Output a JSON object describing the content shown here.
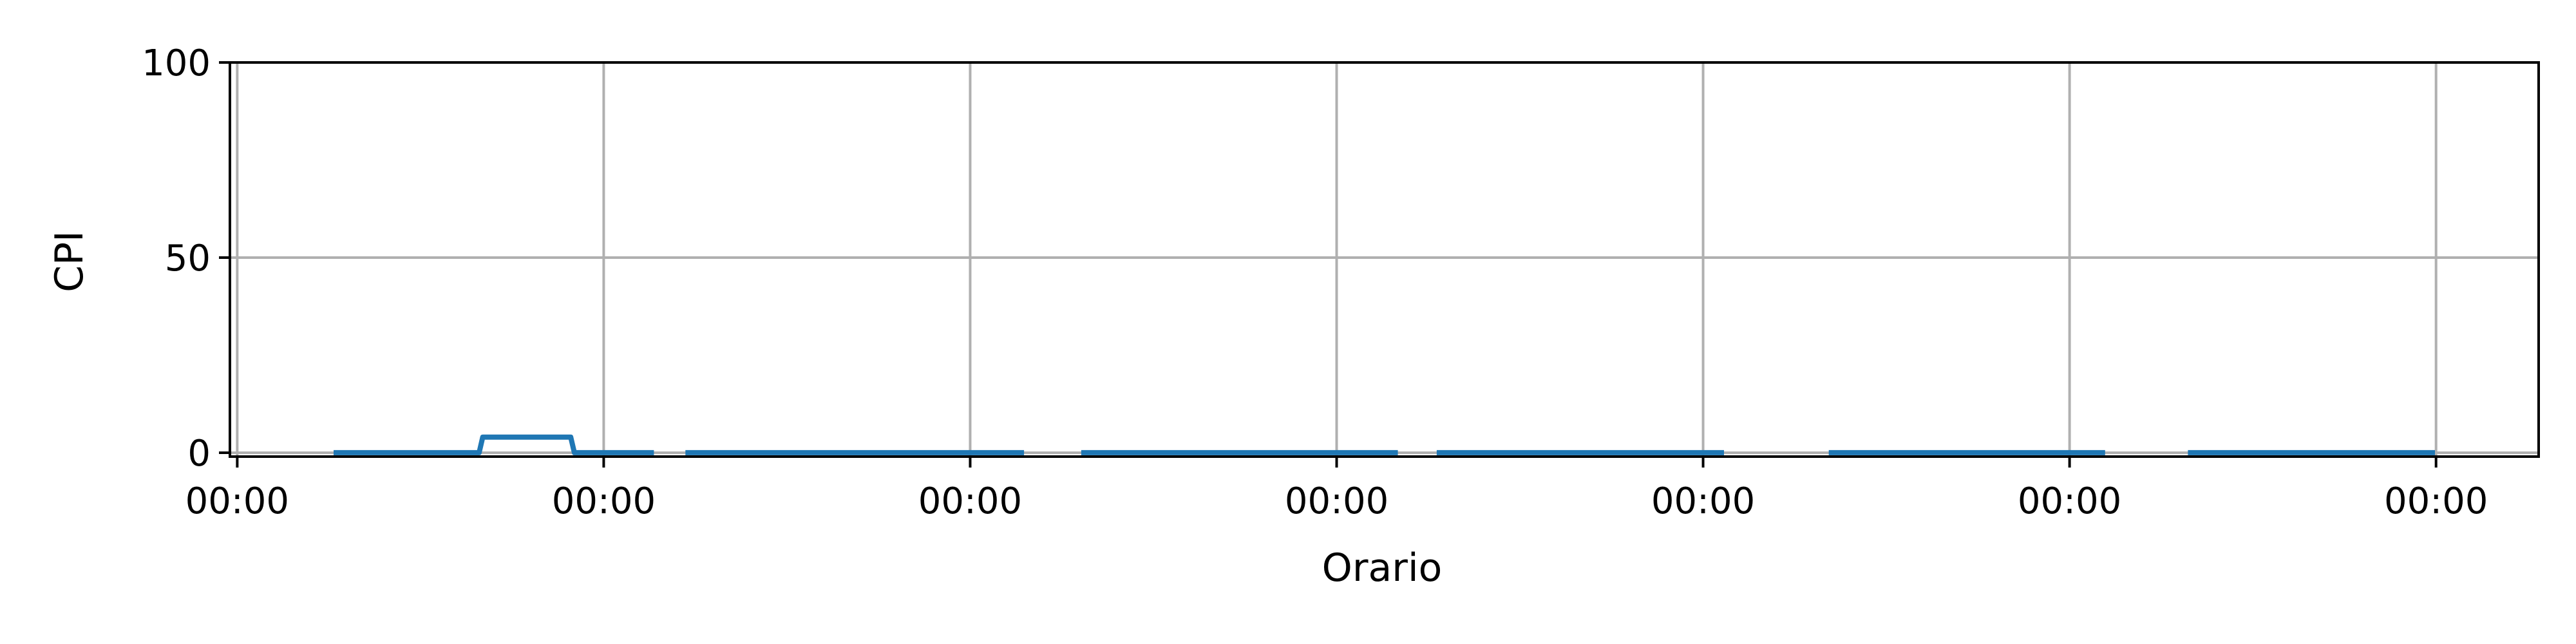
{
  "chart_data": {
    "type": "line",
    "xlabel": "Orario",
    "ylabel": "CPI",
    "xlim": [
      -0.02,
      6.28
    ],
    "ylim": [
      -1,
      100
    ],
    "grid": true,
    "legend": "none",
    "x_tick_positions": [
      0,
      1,
      2,
      3,
      4,
      5,
      6
    ],
    "x_tick_labels": [
      "00:00",
      "00:00",
      "00:00",
      "00:00",
      "00:00",
      "00:00",
      "00:00"
    ],
    "y_ticks": [
      0,
      50,
      100
    ],
    "y_tick_labels": [
      "0",
      "50",
      "100"
    ],
    "series": [
      {
        "color": "#1f77b4",
        "segments": [
          [
            [
              0.27,
              0
            ],
            [
              0.66,
              0
            ],
            [
              0.67,
              4
            ],
            [
              0.91,
              4
            ],
            [
              0.92,
              0
            ],
            [
              1.13,
              0
            ]
          ],
          [
            [
              1.23,
              0
            ],
            [
              2.14,
              0
            ]
          ],
          [
            [
              2.31,
              0
            ],
            [
              3.16,
              0
            ]
          ],
          [
            [
              3.28,
              0
            ],
            [
              4.05,
              0
            ]
          ],
          [
            [
              4.35,
              0
            ],
            [
              5.09,
              0
            ]
          ],
          [
            [
              5.33,
              0
            ],
            [
              5.99,
              0
            ]
          ]
        ]
      }
    ]
  }
}
